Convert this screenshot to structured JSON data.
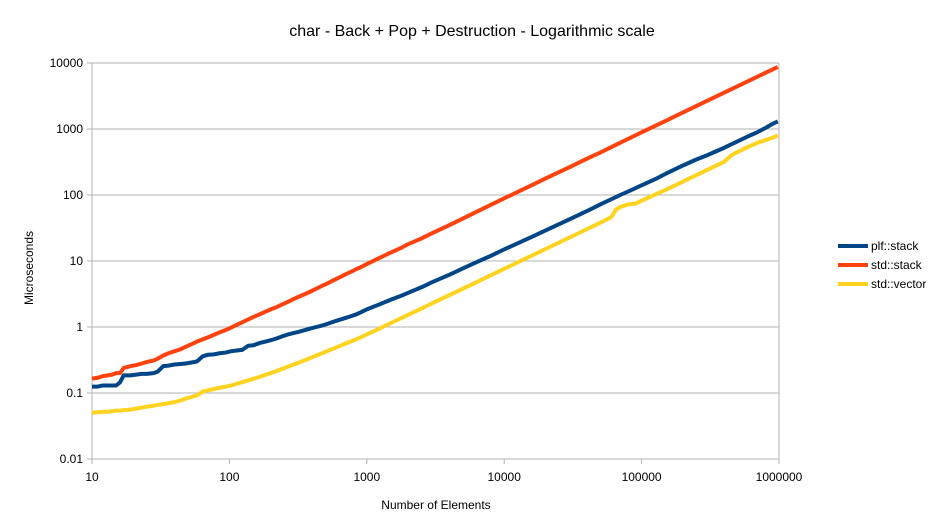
{
  "chart_data": {
    "type": "line",
    "title": "char - Back + Pop + Destruction - Logarithmic scale",
    "xlabel": "Number of Elements",
    "ylabel": "Microseconds",
    "x_scale": "log",
    "y_scale": "log",
    "xlim": [
      10,
      1000000
    ],
    "ylim": [
      0.01,
      10000
    ],
    "x_ticks": [
      "10",
      "100",
      "1000",
      "10000",
      "100000",
      "1000000"
    ],
    "y_ticks": [
      "0.01",
      "0.1",
      "1",
      "10",
      "100",
      "1000",
      "10000"
    ],
    "grid": true,
    "legend_position": "right",
    "series": [
      {
        "name": "plf::stack",
        "color": "#004586",
        "points": [
          [
            10,
            0.125
          ],
          [
            11,
            0.125
          ],
          [
            12,
            0.13
          ],
          [
            13,
            0.13
          ],
          [
            14,
            0.13
          ],
          [
            15,
            0.13
          ],
          [
            16,
            0.145
          ],
          [
            17,
            0.185
          ],
          [
            19,
            0.185
          ],
          [
            21,
            0.19
          ],
          [
            23,
            0.195
          ],
          [
            25,
            0.195
          ],
          [
            28,
            0.2
          ],
          [
            30,
            0.21
          ],
          [
            33,
            0.255
          ],
          [
            36,
            0.26
          ],
          [
            40,
            0.27
          ],
          [
            44,
            0.275
          ],
          [
            48,
            0.28
          ],
          [
            53,
            0.29
          ],
          [
            58,
            0.3
          ],
          [
            64,
            0.36
          ],
          [
            70,
            0.38
          ],
          [
            77,
            0.385
          ],
          [
            85,
            0.4
          ],
          [
            94,
            0.41
          ],
          [
            103,
            0.43
          ],
          [
            113,
            0.44
          ],
          [
            124,
            0.45
          ],
          [
            137,
            0.52
          ],
          [
            150,
            0.53
          ],
          [
            165,
            0.57
          ],
          [
            182,
            0.6
          ],
          [
            200,
            0.63
          ],
          [
            220,
            0.67
          ],
          [
            242,
            0.72
          ],
          [
            266,
            0.77
          ],
          [
            293,
            0.81
          ],
          [
            322,
            0.85
          ],
          [
            355,
            0.9
          ],
          [
            390,
            0.95
          ],
          [
            429,
            1.0
          ],
          [
            472,
            1.05
          ],
          [
            519,
            1.12
          ],
          [
            571,
            1.2
          ],
          [
            628,
            1.28
          ],
          [
            691,
            1.36
          ],
          [
            760,
            1.45
          ],
          [
            836,
            1.55
          ],
          [
            920,
            1.7
          ],
          [
            1000,
            1.85
          ],
          [
            1200,
            2.15
          ],
          [
            1500,
            2.6
          ],
          [
            1800,
            3.0
          ],
          [
            2000,
            3.3
          ],
          [
            2500,
            4.0
          ],
          [
            3000,
            4.8
          ],
          [
            4000,
            6.2
          ],
          [
            5000,
            7.7
          ],
          [
            6000,
            9.2
          ],
          [
            8000,
            12
          ],
          [
            10000,
            15
          ],
          [
            15000,
            22
          ],
          [
            20000,
            29
          ],
          [
            30000,
            43
          ],
          [
            40000,
            57
          ],
          [
            50000,
            72
          ],
          [
            70000,
            100
          ],
          [
            100000,
            140
          ],
          [
            130000,
            180
          ],
          [
            150000,
            210
          ],
          [
            200000,
            280
          ],
          [
            250000,
            345
          ],
          [
            300000,
            400
          ],
          [
            400000,
            520
          ],
          [
            500000,
            650
          ],
          [
            600000,
            780
          ],
          [
            700000,
            900
          ],
          [
            800000,
            1040
          ],
          [
            900000,
            1200
          ],
          [
            980000,
            1300
          ]
        ]
      },
      {
        "name": "std::stack",
        "color": "#ff420e",
        "points": [
          [
            10,
            0.165
          ],
          [
            11,
            0.17
          ],
          [
            12,
            0.18
          ],
          [
            13,
            0.185
          ],
          [
            14,
            0.19
          ],
          [
            15,
            0.2
          ],
          [
            16,
            0.2
          ],
          [
            17,
            0.24
          ],
          [
            19,
            0.255
          ],
          [
            21,
            0.265
          ],
          [
            23,
            0.28
          ],
          [
            25,
            0.295
          ],
          [
            28,
            0.31
          ],
          [
            30,
            0.33
          ],
          [
            33,
            0.37
          ],
          [
            36,
            0.4
          ],
          [
            40,
            0.43
          ],
          [
            44,
            0.46
          ],
          [
            48,
            0.5
          ],
          [
            53,
            0.55
          ],
          [
            58,
            0.6
          ],
          [
            64,
            0.65
          ],
          [
            70,
            0.7
          ],
          [
            77,
            0.76
          ],
          [
            85,
            0.83
          ],
          [
            94,
            0.9
          ],
          [
            103,
            0.98
          ],
          [
            113,
            1.08
          ],
          [
            124,
            1.18
          ],
          [
            137,
            1.3
          ],
          [
            150,
            1.42
          ],
          [
            165,
            1.55
          ],
          [
            182,
            1.7
          ],
          [
            200,
            1.85
          ],
          [
            220,
            2.0
          ],
          [
            242,
            2.2
          ],
          [
            266,
            2.4
          ],
          [
            293,
            2.65
          ],
          [
            322,
            2.9
          ],
          [
            355,
            3.15
          ],
          [
            390,
            3.45
          ],
          [
            429,
            3.8
          ],
          [
            472,
            4.2
          ],
          [
            519,
            4.6
          ],
          [
            571,
            5.1
          ],
          [
            628,
            5.6
          ],
          [
            691,
            6.2
          ],
          [
            760,
            6.8
          ],
          [
            836,
            7.5
          ],
          [
            920,
            8.2
          ],
          [
            1000,
            9
          ],
          [
            1200,
            10.8
          ],
          [
            1500,
            13.5
          ],
          [
            1800,
            16
          ],
          [
            2000,
            18
          ],
          [
            2500,
            22
          ],
          [
            3000,
            26.5
          ],
          [
            4000,
            35
          ],
          [
            5000,
            44
          ],
          [
            6000,
            53
          ],
          [
            8000,
            71
          ],
          [
            10000,
            89
          ],
          [
            15000,
            133
          ],
          [
            20000,
            178
          ],
          [
            30000,
            265
          ],
          [
            40000,
            355
          ],
          [
            50000,
            440
          ],
          [
            70000,
            620
          ],
          [
            100000,
            890
          ],
          [
            150000,
            1330
          ],
          [
            200000,
            1780
          ],
          [
            300000,
            2670
          ],
          [
            400000,
            3560
          ],
          [
            500000,
            4450
          ],
          [
            600000,
            5340
          ],
          [
            700000,
            6230
          ],
          [
            800000,
            7120
          ],
          [
            900000,
            8000
          ],
          [
            980000,
            8700
          ]
        ]
      },
      {
        "name": "std::vector",
        "color": "#ffd320",
        "points": [
          [
            10,
            0.05
          ],
          [
            11,
            0.051
          ],
          [
            12,
            0.052
          ],
          [
            13,
            0.052
          ],
          [
            14,
            0.053
          ],
          [
            15,
            0.054
          ],
          [
            16,
            0.054
          ],
          [
            17,
            0.055
          ],
          [
            19,
            0.056
          ],
          [
            21,
            0.058
          ],
          [
            23,
            0.06
          ],
          [
            25,
            0.062
          ],
          [
            28,
            0.064
          ],
          [
            30,
            0.066
          ],
          [
            33,
            0.068
          ],
          [
            36,
            0.07
          ],
          [
            40,
            0.073
          ],
          [
            44,
            0.077
          ],
          [
            48,
            0.082
          ],
          [
            53,
            0.087
          ],
          [
            58,
            0.092
          ],
          [
            64,
            0.105
          ],
          [
            70,
            0.11
          ],
          [
            77,
            0.115
          ],
          [
            85,
            0.12
          ],
          [
            94,
            0.125
          ],
          [
            103,
            0.13
          ],
          [
            113,
            0.138
          ],
          [
            124,
            0.146
          ],
          [
            137,
            0.155
          ],
          [
            150,
            0.165
          ],
          [
            165,
            0.175
          ],
          [
            182,
            0.188
          ],
          [
            200,
            0.2
          ],
          [
            220,
            0.215
          ],
          [
            242,
            0.232
          ],
          [
            266,
            0.25
          ],
          [
            293,
            0.27
          ],
          [
            322,
            0.29
          ],
          [
            355,
            0.315
          ],
          [
            390,
            0.34
          ],
          [
            429,
            0.37
          ],
          [
            472,
            0.4
          ],
          [
            519,
            0.435
          ],
          [
            571,
            0.47
          ],
          [
            628,
            0.51
          ],
          [
            691,
            0.555
          ],
          [
            760,
            0.6
          ],
          [
            836,
            0.65
          ],
          [
            920,
            0.71
          ],
          [
            1000,
            0.77
          ],
          [
            1200,
            0.92
          ],
          [
            1500,
            1.15
          ],
          [
            1800,
            1.38
          ],
          [
            2000,
            1.53
          ],
          [
            2500,
            1.9
          ],
          [
            3000,
            2.3
          ],
          [
            4000,
            3.05
          ],
          [
            5000,
            3.8
          ],
          [
            6000,
            4.55
          ],
          [
            8000,
            6.1
          ],
          [
            10000,
            7.6
          ],
          [
            15000,
            11.4
          ],
          [
            20000,
            15.2
          ],
          [
            30000,
            22.8
          ],
          [
            40000,
            30.4
          ],
          [
            50000,
            38
          ],
          [
            60000,
            46
          ],
          [
            65000,
            60
          ],
          [
            70000,
            66
          ],
          [
            80000,
            72
          ],
          [
            90000,
            74
          ],
          [
            100000,
            82
          ],
          [
            130000,
            105
          ],
          [
            150000,
            120
          ],
          [
            200000,
            160
          ],
          [
            300000,
            240
          ],
          [
            400000,
            320
          ],
          [
            450000,
            400
          ],
          [
            500000,
            450
          ],
          [
            600000,
            540
          ],
          [
            700000,
            620
          ],
          [
            800000,
            680
          ],
          [
            900000,
            740
          ],
          [
            980000,
            800
          ]
        ]
      }
    ]
  }
}
